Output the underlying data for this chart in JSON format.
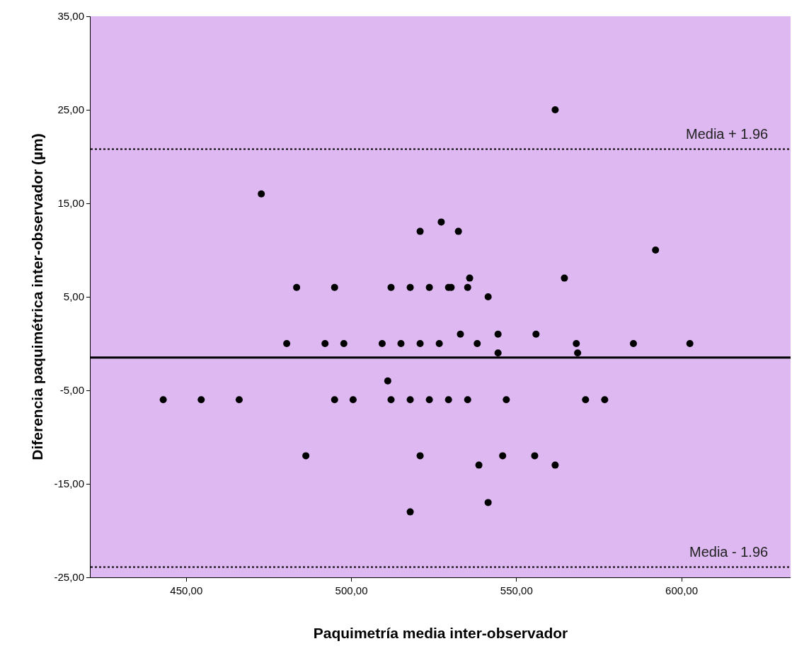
{
  "chart_data": {
    "type": "scatter",
    "xlabel": "Paquimetría media inter-observador",
    "ylabel": "Diferencia paquimétrica inter-observador (µm)",
    "x": [
      443.0,
      454.5,
      466.0,
      472.7,
      480.4,
      483.4,
      486.2,
      492.0,
      494.9,
      494.9,
      497.7,
      500.5,
      509.3,
      511.0,
      512.0,
      512.0,
      515.0,
      517.8,
      517.8,
      517.8,
      520.8,
      520.8,
      520.8,
      523.6,
      523.6,
      526.6,
      527.2,
      529.4,
      530.2,
      529.4,
      532.4,
      533.0,
      535.2,
      535.8,
      535.2,
      538.1,
      538.6,
      541.4,
      541.4,
      544.4,
      544.4,
      545.8,
      546.9,
      555.9,
      555.5,
      561.7,
      561.7,
      564.5,
      568.1,
      568.5,
      570.9,
      576.7,
      585.4,
      592.1,
      602.5
    ],
    "series": [
      {
        "color": "#000000",
        "values": [
          -6,
          -6,
          -6,
          16,
          0,
          6,
          -12,
          0,
          6,
          -6,
          0,
          -6,
          0,
          -4,
          6,
          -6,
          0,
          6,
          -6,
          -18,
          12,
          0,
          -12,
          6,
          -6,
          0,
          13,
          6,
          6,
          -6,
          12,
          1,
          6,
          7,
          -6,
          0,
          -13,
          5,
          -17,
          1,
          -1,
          -12,
          -6,
          1,
          -12,
          25,
          -13,
          7,
          0,
          -1,
          -6,
          -6,
          0,
          10,
          0
        ]
      }
    ],
    "marker": "circle",
    "grid": false,
    "xlim": [
      421,
      633
    ],
    "ylim": [
      -25,
      35
    ],
    "xticks": [
      {
        "value": 450,
        "label": "450,00"
      },
      {
        "value": 500,
        "label": "500,00"
      },
      {
        "value": 550,
        "label": "550,00"
      },
      {
        "value": 600,
        "label": "600,00"
      }
    ],
    "yticks": [
      {
        "value": -25,
        "label": "-25,00"
      },
      {
        "value": -15,
        "label": "-15,00"
      },
      {
        "value": -5,
        "label": "-5,00"
      },
      {
        "value": 5,
        "label": "5,00"
      },
      {
        "value": 15,
        "label": "15,00"
      },
      {
        "value": 25,
        "label": "25,00"
      },
      {
        "value": 35,
        "label": "35,00"
      }
    ],
    "ref_lines": [
      {
        "axis": "y",
        "value": -1.5,
        "color": "#000000",
        "line_style": "solid"
      },
      {
        "axis": "y",
        "value": 20.8,
        "label": "Media + 1.96",
        "color": "#000000",
        "line_style": "dotted"
      },
      {
        "axis": "y",
        "value": -23.9,
        "label": "Media - 1.96",
        "color": "#000000",
        "line_style": "dotted"
      }
    ]
  }
}
